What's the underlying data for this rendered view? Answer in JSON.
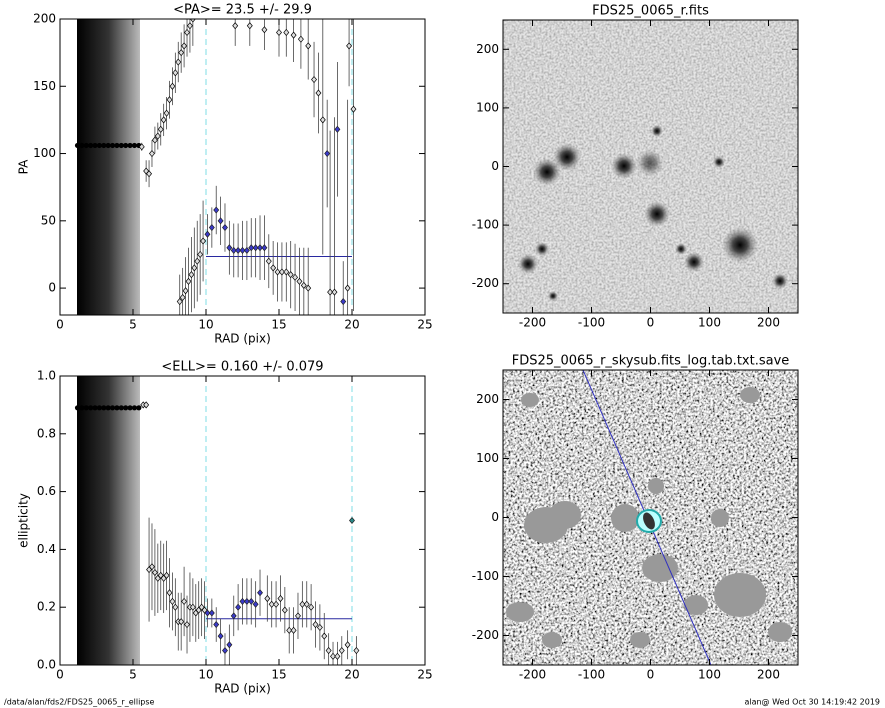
{
  "chart_data": [
    {
      "type": "scatter",
      "title": "<PA>=  23.5 +/-  29.9",
      "xlabel": "RAD (pix)",
      "ylabel": "PA",
      "xlim": [
        0,
        25
      ],
      "ylim": [
        -20,
        200
      ],
      "xticks": [
        0,
        5,
        10,
        15,
        20,
        25
      ],
      "yticks": [
        0,
        50,
        100,
        150,
        200
      ],
      "vlines": [
        10,
        20
      ],
      "vline_color": "#7fdde6",
      "mean": 23.5,
      "mean_color": "#2828a0",
      "series": [
        {
          "color": "#000000",
          "x": [
            1.2,
            1.5,
            1.8,
            2.1,
            2.4,
            2.7,
            3.0,
            3.3,
            3.6,
            3.9,
            4.2,
            4.5,
            4.8,
            5.1,
            5.4
          ],
          "values": [
            106,
            106,
            106,
            106,
            106,
            106,
            106,
            106,
            106,
            106,
            106,
            106,
            106,
            106,
            106
          ]
        },
        {
          "color": "#000000",
          "x": [
            5.6,
            5.9,
            6.1,
            6.3,
            6.5,
            6.7,
            6.9,
            7.1,
            7.3,
            7.5,
            7.7,
            7.9,
            8.1,
            8.3,
            8.5,
            8.7,
            8.9,
            9.1,
            8.2,
            8.4,
            8.6,
            8.8,
            9.0,
            9.2,
            9.4,
            9.6,
            9.8,
            14.3,
            14.6,
            14.9,
            15.2,
            15.5,
            15.8,
            16.1,
            16.4,
            16.7,
            17.0,
            12.0,
            13.0,
            14.0,
            15.0,
            15.5,
            16.0,
            16.5,
            17.0,
            17.4,
            17.7,
            18.0,
            18.5,
            18.8,
            19.7,
            19.8,
            20.1
          ],
          "values": [
            105,
            87,
            85,
            100,
            110,
            113,
            118,
            125,
            130,
            140,
            150,
            160,
            168,
            175,
            180,
            190,
            195,
            200,
            -10,
            -7,
            -2,
            5,
            10,
            15,
            20,
            25,
            35,
            20,
            15,
            12,
            12,
            12,
            10,
            8,
            5,
            2,
            0,
            195,
            195,
            192,
            190,
            190,
            188,
            185,
            180,
            155,
            145,
            125,
            -3,
            -3,
            0,
            180,
            133
          ],
          "errors": [
            3,
            8,
            10,
            10,
            10,
            10,
            12,
            12,
            12,
            14,
            14,
            15,
            15,
            15,
            16,
            18,
            20,
            20,
            20,
            22,
            25,
            25,
            28,
            30,
            30,
            30,
            30,
            20,
            20,
            22,
            22,
            22,
            25,
            25,
            25,
            28,
            30,
            15,
            15,
            15,
            18,
            18,
            20,
            22,
            25,
            28,
            30,
            100,
            120,
            130,
            140,
            30,
            150
          ]
        },
        {
          "color": "#3a3ac8",
          "x": [
            10.1,
            10.4,
            10.7,
            11.0,
            11.3,
            11.6,
            11.9,
            12.2,
            12.5,
            12.8,
            13.1,
            13.4,
            13.7,
            14.0,
            18.3,
            19.0,
            19.4
          ],
          "values": [
            40,
            45,
            58,
            50,
            45,
            30,
            28,
            28,
            28,
            28,
            30,
            30,
            30,
            30,
            100,
            118,
            -10
          ],
          "errors": [
            15,
            15,
            18,
            18,
            18,
            20,
            20,
            20,
            22,
            22,
            22,
            22,
            24,
            24,
            40,
            50,
            30
          ]
        }
      ]
    },
    {
      "type": "image",
      "title": "FDS25_0065_r.fits",
      "xlim": [
        -250,
        250
      ],
      "ylim": [
        -250,
        250
      ],
      "xticks": [
        -200,
        -100,
        0,
        100,
        200
      ],
      "yticks": [
        -200,
        -100,
        0,
        100,
        200
      ]
    },
    {
      "type": "scatter",
      "title": "<ELL>= 0.160 +/-  0.079",
      "xlabel": "RAD (pix)",
      "ylabel": "ellipticity",
      "xlim": [
        0,
        25
      ],
      "ylim": [
        0,
        1
      ],
      "xticks": [
        0,
        5,
        10,
        15,
        20,
        25
      ],
      "yticks": [
        {
          "value": 0,
          "label": "0.0"
        },
        0.2,
        0.4,
        0.6,
        0.8,
        {
          "value": 1,
          "label": "1.0"
        }
      ],
      "vlines": [
        10,
        20
      ],
      "vline_color": "#7fdde6",
      "mean": 0.16,
      "mean_color": "#2828a0",
      "series": [
        {
          "color": "#000000",
          "x": [
            1.2,
            1.5,
            1.8,
            2.1,
            2.4,
            2.7,
            3.0,
            3.3,
            3.6,
            3.9,
            4.2,
            4.5,
            4.8,
            5.1,
            5.4
          ],
          "values": [
            0.89,
            0.89,
            0.89,
            0.89,
            0.89,
            0.89,
            0.89,
            0.89,
            0.89,
            0.89,
            0.89,
            0.89,
            0.89,
            0.89,
            0.89
          ]
        },
        {
          "color": "#000000",
          "x": [
            5.7,
            5.9,
            6.1,
            6.3,
            6.5,
            6.7,
            6.9,
            7.1,
            7.3,
            7.5,
            7.7,
            7.9,
            8.1,
            8.3,
            8.5,
            8.7,
            8.9,
            9.1,
            9.3,
            9.5,
            9.7,
            9.9,
            14.2,
            14.5,
            14.8,
            15.1,
            15.4,
            15.7,
            16.0,
            16.3,
            16.6,
            16.9,
            17.2,
            17.5,
            17.8,
            18.1,
            18.4,
            18.7,
            19.0,
            19.3,
            19.7,
            20.3
          ],
          "values": [
            0.9,
            0.9,
            0.33,
            0.34,
            0.32,
            0.3,
            0.31,
            0.3,
            0.31,
            0.25,
            0.22,
            0.2,
            0.15,
            0.15,
            0.22,
            0.14,
            0.2,
            0.2,
            0.18,
            0.19,
            0.2,
            0.19,
            0.23,
            0.21,
            0.21,
            0.23,
            0.19,
            0.12,
            0.12,
            0.17,
            0.21,
            0.21,
            0.2,
            0.14,
            0.13,
            0.1,
            0.05,
            0.03,
            0.03,
            0.05,
            0.07,
            0.05
          ],
          "errors": [
            0.01,
            0.01,
            0.18,
            0.15,
            0.15,
            0.12,
            0.12,
            0.12,
            0.12,
            0.12,
            0.1,
            0.1,
            0.1,
            0.1,
            0.12,
            0.1,
            0.12,
            0.1,
            0.1,
            0.1,
            0.1,
            0.1,
            0.08,
            0.08,
            0.08,
            0.08,
            0.08,
            0.08,
            0.08,
            0.08,
            0.08,
            0.08,
            0.08,
            0.08,
            0.08,
            0.08,
            0.06,
            0.05,
            0.05,
            0.05,
            0.05,
            0.05
          ]
        },
        {
          "color": "#3a3ac8",
          "x": [
            10.1,
            10.4,
            10.7,
            11.0,
            11.3,
            11.6,
            11.9,
            12.2,
            12.5,
            12.8,
            13.1,
            13.4,
            13.7
          ],
          "values": [
            0.18,
            0.18,
            0.14,
            0.1,
            0.05,
            0.07,
            0.17,
            0.2,
            0.22,
            0.22,
            0.22,
            0.21,
            0.25
          ],
          "errors": [
            0.05,
            0.05,
            0.06,
            0.06,
            0.06,
            0.07,
            0.07,
            0.08,
            0.08,
            0.08,
            0.08,
            0.08,
            0.08
          ]
        },
        {
          "color": "#2a8a8a",
          "x": [
            20.0
          ],
          "values": [
            0.5
          ],
          "errors": [
            0.0
          ]
        }
      ]
    },
    {
      "type": "image",
      "title": "FDS25_0065_r_skysub.fits_log.tab.txt.save",
      "xlim": [
        -250,
        250
      ],
      "ylim": [
        -250,
        250
      ],
      "xticks": [
        -200,
        -100,
        0,
        100,
        200
      ],
      "yticks": [
        -200,
        -100,
        0,
        100,
        200
      ]
    }
  ],
  "footer": {
    "left": "/data/alan/fds2/FDS25_0065_r_ellipse",
    "right": "alan@  Wed Oct 30 14:19:42 2019"
  }
}
